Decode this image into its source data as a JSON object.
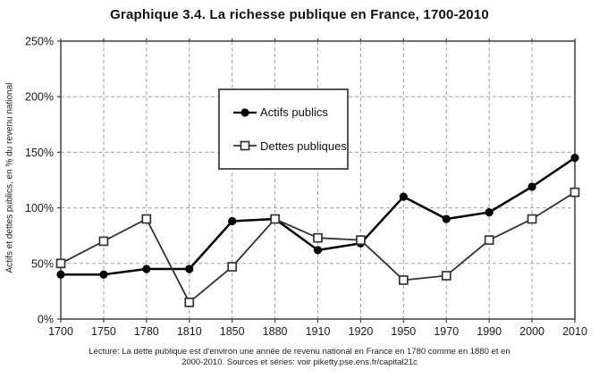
{
  "chart_data": {
    "type": "line",
    "title": "Graphique 3.4. La richesse publique en France, 1700-2010",
    "ylabel": "Actifs et dettes publics, en % du revenu national",
    "xlabel": "",
    "categories": [
      "1700",
      "1750",
      "1780",
      "1810",
      "1850",
      "1880",
      "1910",
      "1920",
      "1950",
      "1970",
      "1990",
      "2000",
      "2010"
    ],
    "series": [
      {
        "name": "Actifs publics",
        "marker": "filled-circle",
        "color": "#000000",
        "values": [
          40,
          40,
          45,
          45,
          88,
          90,
          62,
          68,
          110,
          90,
          96,
          119,
          145
        ]
      },
      {
        "name": "Dettes publiques",
        "marker": "open-square",
        "color": "#333333",
        "values": [
          50,
          70,
          90,
          15,
          47,
          90,
          73,
          71,
          35,
          39,
          71,
          90,
          114
        ]
      }
    ],
    "ylim": [
      0,
      250
    ],
    "ytick_step": 50,
    "ytick_labels": [
      "0%",
      "50%",
      "100%",
      "150%",
      "200%",
      "250%"
    ],
    "grid": "dashed-both",
    "legend_position": "upper-center-left"
  },
  "footer": {
    "line1": "Lecture: La dette publique est d'environ une année de revenu national en France en 1780 comme en 1880 et en",
    "line2": "2000-2010. Sources et séries: voir piketty.pse.ens.fr/capital21c"
  },
  "colors": {
    "background": "#ffffff",
    "frame": "#4a4a4a",
    "grid": "#a0a0a0",
    "tick_text": "#1a1a1a",
    "actifs_line": "#000000",
    "dettes_line": "#333333"
  }
}
